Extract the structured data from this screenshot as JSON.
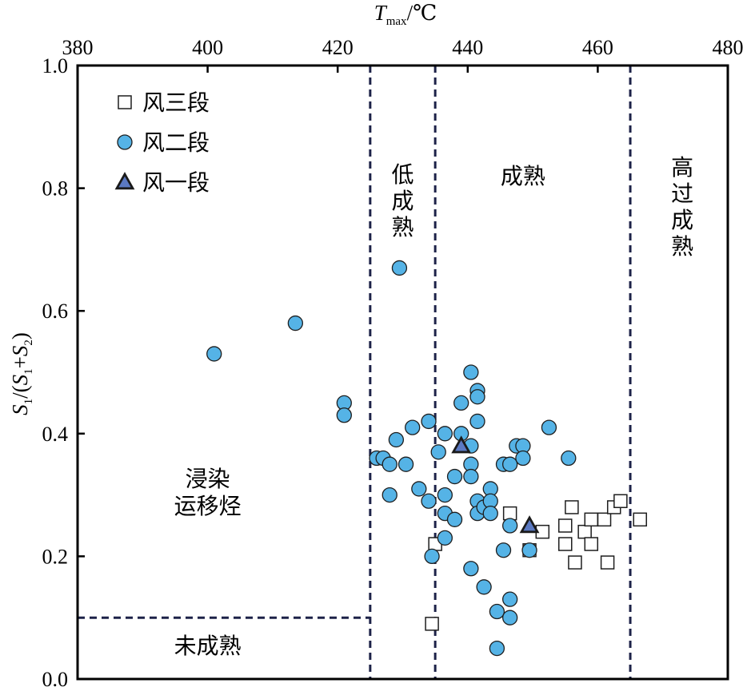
{
  "chart_data": {
    "type": "scatter",
    "title": "",
    "xlabel": {
      "main": "T",
      "sub": "max",
      "unit": "/℃"
    },
    "ylabel": {
      "s1": "S",
      "s1_sub": "1",
      "mid": "/(",
      "s2": "S",
      "s2_sub": "1",
      "plus": "+",
      "s3": "S",
      "s3_sub": "2",
      "close": ")"
    },
    "xlim": [
      380,
      480
    ],
    "ylim": [
      0.0,
      1.0
    ],
    "x_axis_position": "top",
    "x_ticks": [
      "380",
      "400",
      "420",
      "440",
      "460",
      "480"
    ],
    "y_ticks": [
      "0.0",
      "0.2",
      "0.4",
      "0.6",
      "0.8",
      "1.0"
    ],
    "legend": [
      {
        "name": "风三段",
        "marker": "square",
        "fill": "#ffffff"
      },
      {
        "name": "风二段",
        "marker": "circle",
        "fill": "#55b3e6"
      },
      {
        "name": "风一段",
        "marker": "triangle",
        "fill": "#5b79c2"
      }
    ],
    "boundaries": {
      "vertical": [
        425,
        435,
        465
      ],
      "horizontal": {
        "y": 0.1,
        "x_from": 380,
        "x_to": 425
      }
    },
    "zones": [
      {
        "label_lines": [
          "浸染",
          "运移烃"
        ],
        "x": 400,
        "y": 0.305,
        "orientation": "horizontal"
      },
      {
        "label_lines": [
          "未成熟"
        ],
        "x": 400,
        "y": 0.055,
        "orientation": "horizontal"
      },
      {
        "label_lines": [
          "低",
          "成",
          "熟"
        ],
        "x": 430,
        "y": 0.78,
        "orientation": "vertical"
      },
      {
        "label_lines": [
          "成熟"
        ],
        "x": 448.5,
        "y": 0.82,
        "orientation": "horizontal"
      },
      {
        "label_lines": [
          "高",
          "过",
          "成",
          "熟"
        ],
        "x": 473,
        "y": 0.77,
        "orientation": "vertical"
      }
    ],
    "series": [
      {
        "name": "风三段",
        "points": [
          [
            434.5,
            0.09
          ],
          [
            435,
            0.22
          ],
          [
            446.5,
            0.27
          ],
          [
            449.5,
            0.21
          ],
          [
            451.5,
            0.24
          ],
          [
            455,
            0.25
          ],
          [
            455,
            0.22
          ],
          [
            456,
            0.28
          ],
          [
            456.5,
            0.19
          ],
          [
            458,
            0.24
          ],
          [
            459,
            0.26
          ],
          [
            459,
            0.22
          ],
          [
            461,
            0.26
          ],
          [
            461.5,
            0.19
          ],
          [
            462.5,
            0.28
          ],
          [
            463.5,
            0.29
          ],
          [
            466.5,
            0.26
          ]
        ]
      },
      {
        "name": "风二段",
        "points": [
          [
            401,
            0.53
          ],
          [
            413.5,
            0.58
          ],
          [
            421,
            0.45
          ],
          [
            421,
            0.43
          ],
          [
            429.5,
            0.67
          ],
          [
            426,
            0.36
          ],
          [
            427,
            0.36
          ],
          [
            428,
            0.35
          ],
          [
            429,
            0.39
          ],
          [
            428,
            0.3
          ],
          [
            430.5,
            0.35
          ],
          [
            431.5,
            0.41
          ],
          [
            432.5,
            0.31
          ],
          [
            434,
            0.42
          ],
          [
            434,
            0.29
          ],
          [
            434.5,
            0.2
          ],
          [
            435.5,
            0.37
          ],
          [
            436.5,
            0.4
          ],
          [
            436.5,
            0.3
          ],
          [
            436.5,
            0.27
          ],
          [
            436.5,
            0.23
          ],
          [
            438,
            0.33
          ],
          [
            438,
            0.26
          ],
          [
            439,
            0.45
          ],
          [
            439,
            0.4
          ],
          [
            440.5,
            0.5
          ],
          [
            440.5,
            0.38
          ],
          [
            440.5,
            0.35
          ],
          [
            440.5,
            0.33
          ],
          [
            440.5,
            0.18
          ],
          [
            441.5,
            0.47
          ],
          [
            441.5,
            0.46
          ],
          [
            441.5,
            0.42
          ],
          [
            441.5,
            0.29
          ],
          [
            441.5,
            0.27
          ],
          [
            442.5,
            0.28
          ],
          [
            442.5,
            0.15
          ],
          [
            443.5,
            0.31
          ],
          [
            443.5,
            0.29
          ],
          [
            443.5,
            0.27
          ],
          [
            444.5,
            0.11
          ],
          [
            444.5,
            0.05
          ],
          [
            445.5,
            0.35
          ],
          [
            445.5,
            0.21
          ],
          [
            446.5,
            0.35
          ],
          [
            446.5,
            0.25
          ],
          [
            446.5,
            0.13
          ],
          [
            446.5,
            0.1
          ],
          [
            447.5,
            0.38
          ],
          [
            448.5,
            0.38
          ],
          [
            448.5,
            0.36
          ],
          [
            449.5,
            0.21
          ],
          [
            452.5,
            0.41
          ],
          [
            455.5,
            0.36
          ]
        ]
      },
      {
        "name": "风一段",
        "points": [
          [
            439,
            0.38
          ],
          [
            449.5,
            0.25
          ]
        ]
      }
    ]
  }
}
